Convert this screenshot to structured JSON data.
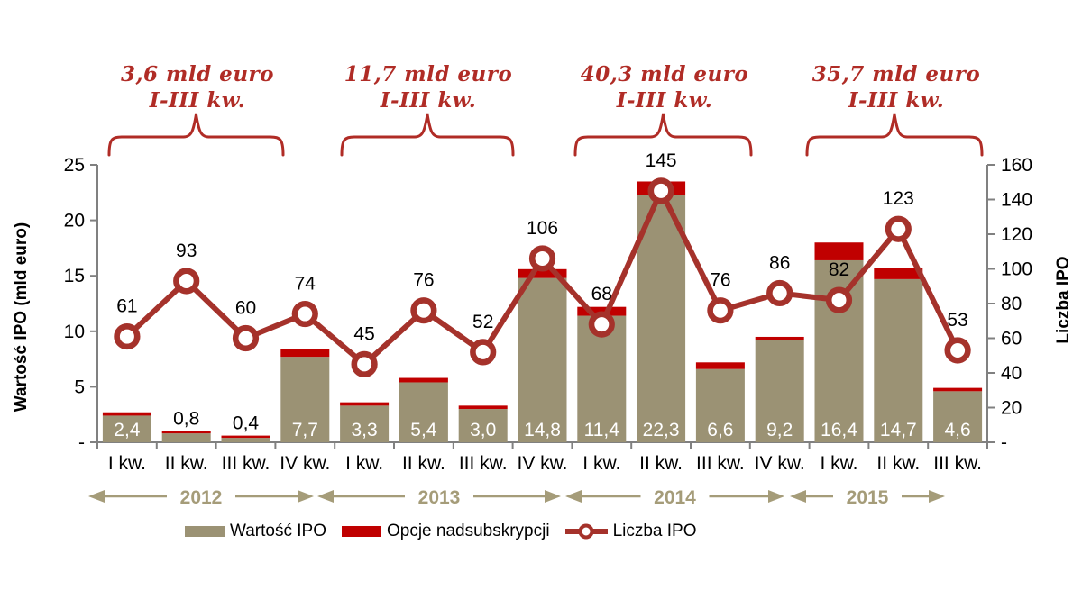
{
  "colors": {
    "bar": "#9b9274",
    "cap": "#c00000",
    "line": "#a5322b",
    "annotation": "#b02c26",
    "axis": "#808080",
    "tan_text": "#a59c79",
    "bar_label_inside": "#ffffff",
    "bar_label_outside": "#000000"
  },
  "left_axis": {
    "title": "Wartość IPO (mld euro)",
    "max": 25,
    "ticks": [
      {
        "v": 25,
        "label": "25"
      },
      {
        "v": 20,
        "label": "20"
      },
      {
        "v": 15,
        "label": "15"
      },
      {
        "v": 10,
        "label": "10"
      },
      {
        "v": 5,
        "label": "5"
      },
      {
        "v": 0,
        "label": "-"
      }
    ]
  },
  "right_axis": {
    "title": "Liczba IPO",
    "max": 160,
    "ticks": [
      {
        "v": 160,
        "label": "160"
      },
      {
        "v": 140,
        "label": "140"
      },
      {
        "v": 120,
        "label": "120"
      },
      {
        "v": 100,
        "label": "100"
      },
      {
        "v": 80,
        "label": "80"
      },
      {
        "v": 60,
        "label": "60"
      },
      {
        "v": 40,
        "label": "40"
      },
      {
        "v": 20,
        "label": "20"
      },
      {
        "v": 0,
        "label": "-"
      }
    ]
  },
  "annotations": [
    {
      "line1": "3,6 mld euro",
      "line2": "I-III kw."
    },
    {
      "line1": "11,7 mld euro",
      "line2": "I-III kw."
    },
    {
      "line1": "40,3 mld euro",
      "line2": "I-III kw."
    },
    {
      "line1": "35,7 mld euro",
      "line2": "I-III kw."
    }
  ],
  "years": [
    {
      "label": "2012",
      "quarters": 4
    },
    {
      "label": "2013",
      "quarters": 4
    },
    {
      "label": "2014",
      "quarters": 4
    },
    {
      "label": "2015",
      "quarters": 3
    }
  ],
  "legend": [
    {
      "label": "Wartość IPO"
    },
    {
      "label": "Opcje nadsubskrypcji"
    },
    {
      "label": "Liczba IPO"
    }
  ],
  "chart_data": {
    "type": "combo-stacked-bar-line",
    "title": "",
    "xlabel": "",
    "ylabel_left": "Wartość IPO (mld euro)",
    "ylabel_right": "Liczba IPO",
    "ylim_left": [
      0,
      25
    ],
    "ylim_right": [
      0,
      160
    ],
    "grid": false,
    "legend_position": "bottom",
    "categories": [
      "I kw.",
      "II kw.",
      "III kw.",
      "IV kw.",
      "I kw.",
      "II kw.",
      "III kw.",
      "IV kw.",
      "I kw.",
      "II kw.",
      "III kw.",
      "IV kw.",
      "I kw.",
      "II kw.",
      "III kw."
    ],
    "category_years": [
      "2012",
      "2012",
      "2012",
      "2012",
      "2013",
      "2013",
      "2013",
      "2013",
      "2014",
      "2014",
      "2014",
      "2014",
      "2015",
      "2015",
      "2015"
    ],
    "series": [
      {
        "name": "Wartość IPO",
        "type": "bar",
        "axis": "left",
        "stack": "ipo",
        "values": [
          2.4,
          0.8,
          0.4,
          7.7,
          3.3,
          5.4,
          3.0,
          14.8,
          11.4,
          22.3,
          6.6,
          9.2,
          16.4,
          14.7,
          4.6
        ],
        "labels": [
          "2,4",
          "0,8",
          "0,4",
          "7,7",
          "3,3",
          "5,4",
          "3,0",
          "14,8",
          "11,4",
          "22,3",
          "6,6",
          "9,2",
          "16,4",
          "14,7",
          "4,6"
        ]
      },
      {
        "name": "Opcje nadsubskrypcji",
        "type": "bar",
        "axis": "left",
        "stack": "ipo",
        "values_estimated_from_pixels": true,
        "values": [
          0.3,
          0.2,
          0.2,
          0.7,
          0.3,
          0.4,
          0.3,
          0.8,
          0.8,
          1.2,
          0.6,
          0.3,
          1.6,
          1.0,
          0.3
        ]
      },
      {
        "name": "Liczba IPO",
        "type": "line",
        "axis": "right",
        "values": [
          61,
          93,
          60,
          74,
          45,
          76,
          52,
          106,
          68,
          145,
          76,
          86,
          82,
          123,
          53
        ],
        "labels": [
          "61",
          "93",
          "60",
          "74",
          "45",
          "76",
          "52",
          "106",
          "68",
          "145",
          "76",
          "86",
          "82",
          "123",
          "53"
        ]
      }
    ],
    "group_totals_annotations": [
      "3,6 mld euro I-III kw.",
      "11,7 mld euro I-III kw.",
      "40,3 mld euro I-III kw.",
      "35,7 mld euro I-III kw."
    ]
  }
}
